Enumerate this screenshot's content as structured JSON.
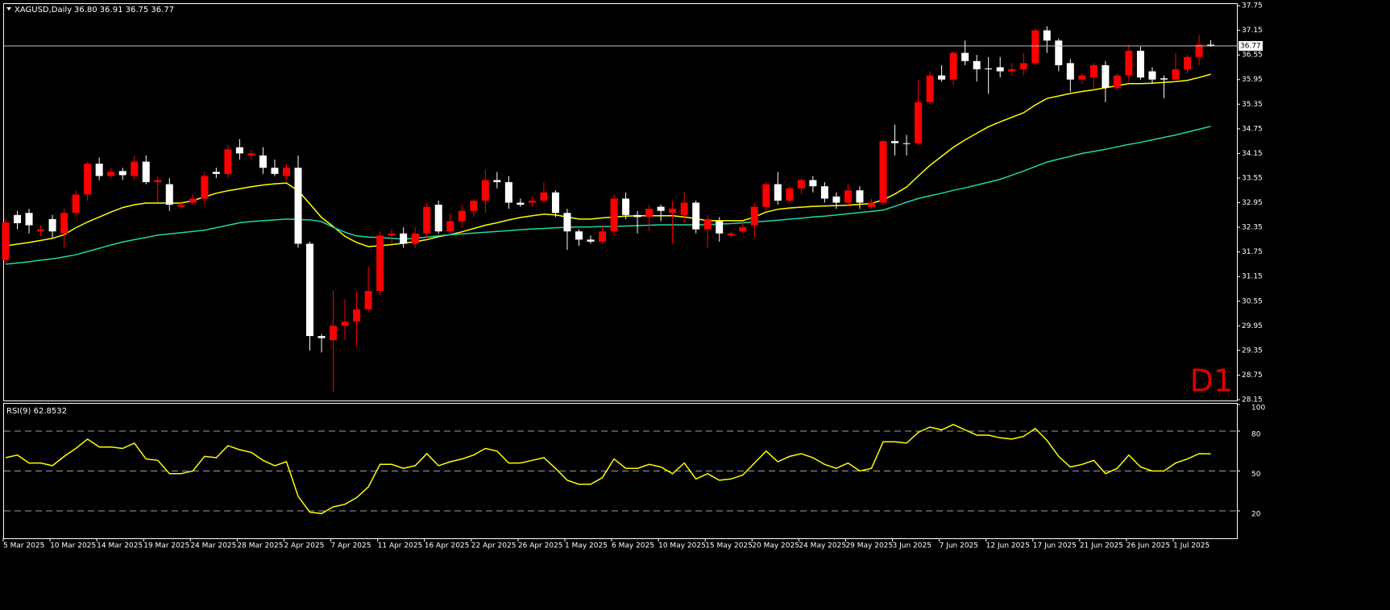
{
  "chart_data": [
    {
      "type": "candlestick",
      "title": "XAGUSD,Daily",
      "ohlc_text": "36.80 36.91 36.75 36.77",
      "timeframe_label": "D1",
      "up_color": "#ff0000",
      "down_color": "#ffffff",
      "current_price": 36.77,
      "categories": [
        "5 Mar 2025",
        null,
        null,
        null,
        "10 Mar 2025",
        null,
        null,
        null,
        "14 Mar 2025",
        null,
        null,
        null,
        "19 Mar 2025",
        null,
        null,
        null,
        "24 Mar 2025",
        null,
        null,
        null,
        "28 Mar 2025",
        null,
        null,
        null,
        "2 Apr 2025",
        null,
        null,
        null,
        "7 Apr 2025",
        null,
        null,
        null,
        "11 Apr 2025",
        null,
        null,
        null,
        "16 Apr 2025",
        null,
        null,
        null,
        "22 Apr 2025",
        null,
        null,
        null,
        "26 Apr 2025",
        null,
        null,
        null,
        "1 May 2025",
        null,
        null,
        null,
        "6 May 2025",
        null,
        null,
        null,
        "10 May 2025",
        null,
        null,
        null,
        "15 May 2025",
        null,
        null,
        null,
        "20 May 2025",
        null,
        null,
        null,
        "24 May 2025",
        null,
        null,
        null,
        "29 May 2025",
        null,
        null,
        null,
        "3 Jun 2025",
        null,
        null,
        null,
        "7 Jun 2025",
        null,
        null,
        null,
        "12 Jun 2025",
        null,
        null,
        null,
        "17 Jun 2025",
        null,
        null,
        null,
        "21 Jun 2025",
        null,
        null,
        null,
        "26 Jun 2025",
        null,
        null,
        null,
        "1 Jul 2025",
        null,
        null,
        null
      ],
      "open": [
        31.55,
        32.65,
        32.7,
        32.25,
        32.55,
        32.2,
        32.7,
        33.15,
        33.9,
        33.6,
        33.72,
        33.6,
        33.95,
        33.45,
        33.4,
        32.85,
        32.95,
        33.05,
        33.7,
        33.65,
        34.3,
        34.1,
        34.1,
        33.8,
        33.6,
        33.8,
        31.95,
        29.7,
        29.6,
        29.95,
        30.05,
        30.35,
        30.8,
        32.15,
        32.2,
        31.95,
        32.2,
        32.9,
        32.25,
        32.5,
        32.75,
        33.0,
        33.5,
        33.45,
        32.95,
        32.95,
        33.0,
        33.2,
        32.7,
        32.25,
        32.05,
        32.0,
        32.25,
        33.05,
        32.65,
        32.6,
        32.85,
        32.7,
        32.65,
        32.95,
        32.3,
        32.5,
        32.15,
        32.25,
        32.4,
        32.85,
        33.4,
        33.0,
        33.3,
        33.5,
        33.35,
        33.1,
        32.95,
        33.25,
        32.85,
        32.95,
        34.45,
        34.4,
        34.4,
        35.4,
        36.05,
        35.95,
        36.6,
        36.4,
        36.22,
        36.25,
        36.15,
        36.2,
        36.35,
        37.15,
        36.9,
        36.35,
        35.95,
        36.0,
        36.3,
        35.75,
        36.05,
        36.65,
        36.15,
        35.98,
        35.95,
        36.2,
        36.5,
        36.8
      ],
      "high": [
        32.55,
        32.75,
        32.8,
        32.4,
        32.65,
        32.8,
        33.25,
        33.95,
        34.05,
        33.8,
        33.8,
        34.1,
        34.1,
        33.6,
        33.55,
        33.0,
        33.15,
        33.7,
        33.8,
        34.35,
        34.5,
        34.25,
        34.3,
        34.0,
        33.9,
        34.1,
        32.0,
        29.75,
        30.8,
        30.6,
        30.8,
        31.4,
        32.25,
        32.3,
        32.35,
        32.35,
        32.95,
        33.0,
        32.7,
        32.9,
        33.05,
        33.75,
        33.7,
        33.6,
        33.05,
        33.1,
        33.45,
        33.25,
        32.8,
        32.3,
        32.15,
        32.4,
        33.15,
        33.2,
        32.75,
        32.9,
        32.9,
        33.0,
        33.2,
        33.0,
        32.65,
        32.6,
        32.25,
        32.5,
        32.95,
        33.45,
        33.7,
        33.35,
        33.55,
        33.6,
        33.45,
        33.2,
        33.4,
        33.35,
        33.05,
        34.5,
        34.85,
        34.6,
        35.95,
        36.15,
        36.3,
        36.65,
        36.9,
        36.55,
        36.5,
        36.5,
        36.35,
        36.6,
        37.2,
        37.25,
        36.95,
        36.45,
        36.1,
        36.35,
        36.4,
        36.1,
        36.8,
        36.75,
        36.25,
        36.05,
        36.6,
        36.55,
        37.05,
        36.91
      ],
      "low": [
        31.45,
        32.3,
        32.2,
        32.15,
        32.1,
        31.85,
        32.6,
        33.0,
        33.5,
        33.55,
        33.5,
        33.5,
        33.4,
        32.95,
        32.75,
        32.8,
        32.9,
        32.9,
        33.55,
        33.55,
        34.0,
        34.0,
        33.65,
        33.6,
        33.5,
        31.85,
        29.35,
        29.3,
        28.35,
        29.6,
        29.45,
        30.3,
        30.7,
        31.95,
        31.85,
        31.85,
        32.1,
        32.2,
        32.2,
        32.35,
        32.6,
        32.7,
        33.3,
        32.8,
        32.85,
        32.85,
        32.95,
        32.6,
        31.8,
        31.9,
        31.95,
        31.95,
        32.15,
        32.55,
        32.2,
        32.25,
        32.5,
        31.95,
        32.45,
        32.2,
        31.85,
        32.0,
        32.1,
        32.2,
        32.1,
        32.75,
        32.9,
        32.95,
        33.15,
        33.2,
        32.95,
        32.8,
        32.85,
        32.8,
        32.8,
        32.9,
        34.1,
        34.1,
        34.35,
        35.35,
        35.9,
        35.8,
        36.3,
        35.9,
        35.6,
        36.0,
        36.05,
        36.05,
        36.3,
        36.6,
        36.15,
        35.65,
        35.85,
        35.7,
        35.4,
        35.7,
        35.9,
        35.95,
        35.85,
        35.5,
        35.9,
        36.1,
        36.3,
        36.75
      ],
      "close": [
        32.47,
        32.45,
        32.4,
        32.3,
        32.25,
        32.7,
        33.15,
        33.9,
        33.6,
        33.7,
        33.62,
        33.95,
        33.45,
        33.5,
        32.9,
        32.9,
        33.05,
        33.6,
        33.65,
        34.25,
        34.15,
        34.15,
        33.8,
        33.65,
        33.8,
        31.95,
        29.7,
        29.65,
        29.95,
        30.05,
        30.35,
        30.8,
        32.15,
        32.2,
        31.95,
        32.2,
        32.85,
        32.25,
        32.5,
        32.75,
        33.0,
        33.5,
        33.45,
        32.95,
        32.9,
        33.0,
        33.2,
        32.7,
        32.25,
        32.05,
        32.0,
        32.25,
        33.05,
        32.65,
        32.6,
        32.8,
        32.75,
        32.8,
        32.95,
        32.3,
        32.55,
        32.2,
        32.2,
        32.35,
        32.85,
        33.4,
        33.0,
        33.3,
        33.5,
        33.35,
        33.05,
        32.95,
        33.25,
        32.95,
        32.95,
        34.45,
        34.4,
        34.38,
        35.4,
        36.05,
        35.95,
        36.6,
        36.4,
        36.2,
        36.2,
        36.15,
        36.2,
        36.35,
        37.15,
        36.9,
        36.3,
        35.95,
        36.05,
        36.3,
        35.75,
        36.05,
        36.65,
        36.0,
        35.95,
        35.95,
        36.2,
        36.5,
        36.8,
        36.77
      ],
      "lines": [
        {
          "color": "#ffff00",
          "values": [
            31.9,
            31.94,
            31.98,
            32.03,
            32.08,
            32.17,
            32.34,
            32.48,
            32.6,
            32.72,
            32.83,
            32.9,
            32.94,
            32.94,
            32.94,
            32.94,
            33.0,
            33.09,
            33.18,
            33.24,
            33.29,
            33.34,
            33.38,
            33.41,
            33.43,
            33.24,
            32.92,
            32.59,
            32.37,
            32.13,
            31.98,
            31.88,
            31.9,
            31.93,
            31.96,
            32.0,
            32.05,
            32.12,
            32.17,
            32.24,
            32.32,
            32.4,
            32.46,
            32.53,
            32.59,
            32.63,
            32.67,
            32.65,
            32.6,
            32.55,
            32.55,
            32.58,
            32.6,
            32.62,
            32.63,
            32.63,
            32.63,
            32.63,
            32.6,
            32.56,
            32.51,
            32.51,
            32.51,
            32.51,
            32.6,
            32.72,
            32.79,
            32.82,
            32.84,
            32.86,
            32.87,
            32.88,
            32.89,
            32.91,
            32.93,
            33.02,
            33.16,
            33.33,
            33.6,
            33.86,
            34.08,
            34.3,
            34.48,
            34.64,
            34.8,
            34.92,
            35.03,
            35.14,
            35.33,
            35.49,
            35.55,
            35.61,
            35.66,
            35.7,
            35.75,
            35.8,
            35.85,
            35.85,
            35.86,
            35.88,
            35.9,
            35.93,
            36.0,
            36.08
          ]
        },
        {
          "color": "#20d8a8",
          "values": [
            31.45,
            31.48,
            31.51,
            31.55,
            31.58,
            31.63,
            31.68,
            31.76,
            31.84,
            31.92,
            31.99,
            32.05,
            32.1,
            32.16,
            32.19,
            32.22,
            32.25,
            32.28,
            32.34,
            32.4,
            32.46,
            32.49,
            32.51,
            32.53,
            32.55,
            32.54,
            32.53,
            32.49,
            32.35,
            32.23,
            32.14,
            32.11,
            32.1,
            32.08,
            32.06,
            32.08,
            32.11,
            32.14,
            32.17,
            32.19,
            32.21,
            32.23,
            32.25,
            32.27,
            32.29,
            32.31,
            32.32,
            32.34,
            32.35,
            32.36,
            32.36,
            32.37,
            32.37,
            32.38,
            32.39,
            32.4,
            32.41,
            32.41,
            32.41,
            32.41,
            32.41,
            32.43,
            32.44,
            32.46,
            32.48,
            32.5,
            32.52,
            32.55,
            32.57,
            32.6,
            32.62,
            32.65,
            32.68,
            32.71,
            32.74,
            32.77,
            32.86,
            32.96,
            33.05,
            33.12,
            33.18,
            33.25,
            33.31,
            33.38,
            33.45,
            33.52,
            33.62,
            33.72,
            33.83,
            33.94,
            34.01,
            34.08,
            34.15,
            34.2,
            34.25,
            34.31,
            34.37,
            34.42,
            34.48,
            34.54,
            34.6,
            34.67,
            34.74,
            34.81
          ]
        }
      ],
      "ylim": [
        28.13,
        37.81
      ],
      "yticks": [
        37.75,
        37.15,
        36.55,
        35.95,
        35.35,
        34.75,
        34.15,
        33.55,
        32.95,
        32.35,
        31.75,
        31.15,
        30.55,
        29.95,
        29.35,
        28.75,
        28.15
      ]
    },
    {
      "type": "line",
      "title": "RSI(9) 62.8532",
      "color": "#ffff00",
      "values": [
        60,
        62,
        56,
        56,
        54,
        61,
        67,
        74,
        68,
        68,
        67,
        71,
        59,
        58,
        48,
        48,
        50,
        61,
        60,
        69,
        66,
        64,
        58,
        54,
        57,
        31,
        19,
        18,
        23,
        25,
        30,
        38,
        55,
        55,
        52,
        54,
        63,
        54,
        57,
        59,
        62,
        67,
        65,
        56,
        56,
        58,
        60,
        52,
        43,
        40,
        40,
        45,
        59,
        52,
        52,
        55,
        53,
        48,
        56,
        44,
        48,
        43,
        44,
        47,
        56,
        65,
        57,
        61,
        63,
        60,
        55,
        52,
        56,
        50,
        52,
        72,
        72,
        71,
        79,
        83,
        81,
        85,
        81,
        77,
        77,
        75,
        74,
        76,
        82,
        73,
        61,
        53,
        55,
        58,
        48,
        52,
        62,
        53,
        50,
        50,
        56,
        59,
        63,
        62.85
      ],
      "ylim": [
        0,
        100
      ],
      "yticks": [
        100,
        80,
        50,
        20
      ],
      "levels": [
        80,
        50,
        20
      ]
    }
  ]
}
